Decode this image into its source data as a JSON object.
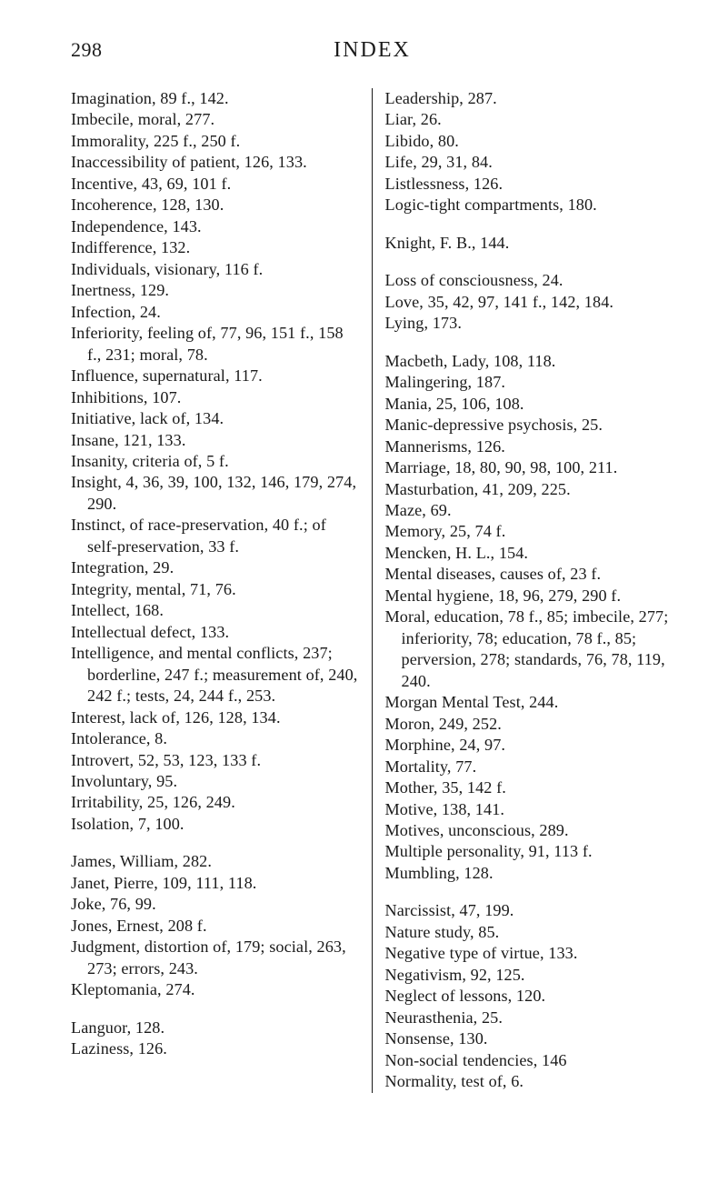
{
  "header": {
    "page_number": "298",
    "title": "INDEX"
  },
  "left_groups": [
    [
      "Imagination, 89 f., 142.",
      "Imbecile, moral, 277.",
      "Immorality, 225 f., 250 f.",
      "Inaccessibility of patient, 126, 133.",
      "Incentive, 43, 69, 101 f.",
      "Incoherence, 128, 130.",
      "Independence, 143.",
      "Indifference, 132.",
      "Individuals, visionary, 116 f.",
      "Inertness, 129.",
      "Infection, 24.",
      "Inferiority, feeling of, 77, 96, 151 f., 158 f., 231; moral, 78.",
      "Influence, supernatural, 117.",
      "Inhibitions, 107.",
      "Initiative, lack of, 134.",
      "Insane, 121, 133.",
      "Insanity, criteria of, 5 f.",
      "Insight, 4, 36, 39, 100, 132, 146, 179, 274, 290.",
      "Instinct, of race-preservation, 40 f.; of self-preservation, 33 f.",
      "Integration, 29.",
      "Integrity, mental, 71, 76.",
      "Intellect, 168.",
      "Intellectual defect, 133.",
      "Intelligence, and mental conflicts, 237; borderline, 247 f.; mea­surement of, 240, 242 f.; tests, 24, 244 f., 253.",
      "Interest, lack of, 126, 128, 134.",
      "Intolerance, 8.",
      "Introvert, 52, 53, 123, 133 f.",
      "Involuntary, 95.",
      "Irritability, 25, 126, 249.",
      "Isolation, 7, 100."
    ],
    [
      "James, William, 282.",
      "Janet, Pierre, 109, 111, 118.",
      "Joke, 76, 99.",
      "Jones, Ernest, 208 f.",
      "Judgment, distortion of, 179; so­cial, 263, 273; errors, 243.",
      "Kleptomania, 274."
    ],
    [
      "Languor, 128.",
      "Laziness, 126."
    ]
  ],
  "right_groups": [
    [
      "Leadership, 287.",
      "Liar, 26.",
      "Libido, 80.",
      "Life, 29, 31, 84.",
      "Listlessness, 126.",
      "Logic-tight compartments, 180."
    ],
    [
      "Knight, F. B., 144."
    ],
    [
      "Loss of consciousness, 24.",
      "Love, 35, 42, 97, 141 f., 142, 184.",
      "Lying, 173."
    ],
    [
      "Macbeth, Lady, 108, 118.",
      "Malingering, 187.",
      "Mania, 25, 106, 108.",
      "Manic-depressive psychosis, 25.",
      "Mannerisms, 126.",
      "Marriage, 18, 80, 90, 98, 100, 211.",
      "Masturbation, 41, 209, 225.",
      "Maze, 69.",
      "Memory, 25, 74 f.",
      "Mencken, H. L., 154.",
      "Mental diseases, causes of, 23 f.",
      "Mental hygiene, 18, 96, 279, 290 f.",
      "Moral, education, 78 f., 85; im­becile, 277; inferiority, 78; edu­cation, 78 f., 85; perversion, 278; standards, 76, 78, 119, 240.",
      "Morgan Mental Test, 244.",
      "Moron, 249, 252.",
      "Morphine, 24, 97.",
      "Mortality, 77.",
      "Mother, 35, 142 f.",
      "Motive, 138, 141.",
      "Motives, unconscious, 289.",
      "Multiple personality, 91, 113 f.",
      "Mumbling, 128."
    ],
    [
      "Narcissist, 47, 199.",
      "Nature study, 85.",
      "Negative type of virtue, 133.",
      "Negativism, 92, 125.",
      "Neglect of lessons, 120.",
      "Neurasthenia, 25.",
      "Nonsense, 130.",
      "Non-social tendencies, 146",
      "Normality, test of, 6."
    ]
  ]
}
